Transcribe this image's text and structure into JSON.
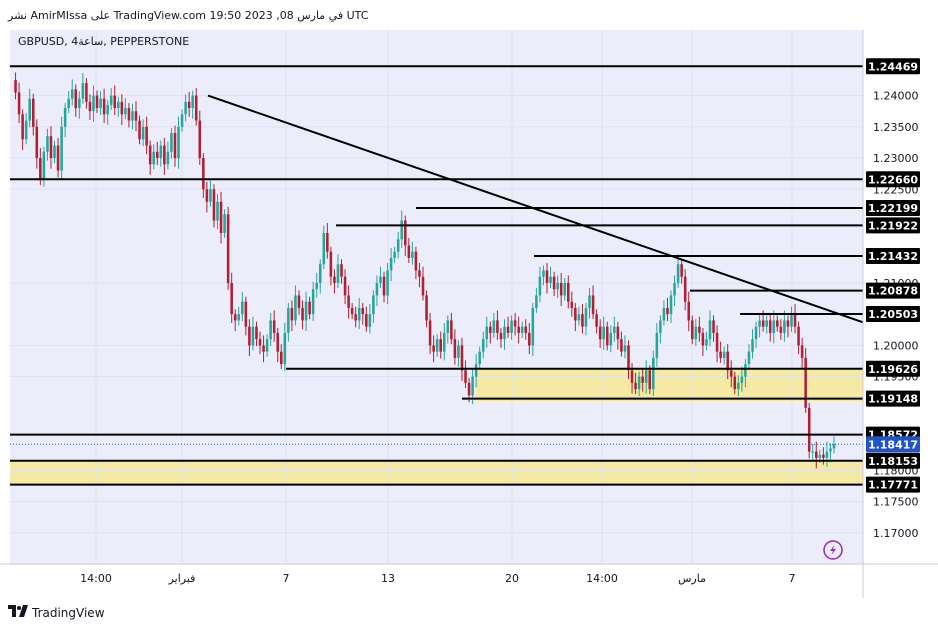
{
  "header": {
    "text": "نشر AmirMIssa على TradingView.com 19:50 2023 ,08 في مارس UTC"
  },
  "symbol_label": "GBPUSD, 4ساعة, PEPPERSTONE",
  "footer": {
    "brand": "TradingView",
    "logo_icon": "tradingview-logo-icon"
  },
  "colors": {
    "background": "#ebedfb",
    "up": "#26a69a",
    "down": "#b21e32",
    "zone": "#f5eaa3",
    "line": "#000000",
    "last_price_bg": "#2154c7"
  },
  "chart_data": {
    "type": "candlestick",
    "ylim": [
      1.165,
      1.2505
    ],
    "y_ticks": [
      "1.24000",
      "1.23500",
      "1.23000",
      "1.22500",
      "1.21000",
      "1.20000",
      "1.19500",
      "1.18000",
      "1.17500",
      "1.17000"
    ],
    "x_ticks": [
      "14:00",
      "فبراير",
      "7",
      "13",
      "20",
      "14:00",
      "مارس",
      "7"
    ],
    "levels": [
      {
        "label": "1.24469",
        "value": 1.24469
      },
      {
        "label": "1.22660",
        "value": 1.2266
      },
      {
        "label": "1.22199",
        "value": 1.22199
      },
      {
        "label": "1.21922",
        "value": 1.21922
      },
      {
        "label": "1.21432",
        "value": 1.21432
      },
      {
        "label": "1.20878",
        "value": 1.20878
      },
      {
        "label": "1.20503",
        "value": 1.20503
      },
      {
        "label": "1.19626",
        "value": 1.19626
      },
      {
        "label": "1.19148",
        "value": 1.19148
      },
      {
        "label": "1.18572",
        "value": 1.18572
      },
      {
        "label": "1.18153",
        "value": 1.18153
      },
      {
        "label": "1.17771",
        "value": 1.17771
      }
    ],
    "last_price": {
      "label": "1.18417",
      "value": 1.18417
    },
    "zones": [
      {
        "from": 1.1911,
        "to": 1.19626
      },
      {
        "from": 1.17771,
        "to": 1.18153
      }
    ],
    "trendline": {
      "from": 1.24,
      "to": 1.2037
    },
    "closes": [
      1.2425,
      1.2405,
      1.237,
      1.233,
      1.236,
      1.2395,
      1.235,
      1.23,
      1.2265,
      1.231,
      1.2335,
      1.23,
      1.232,
      1.228,
      1.235,
      1.238,
      1.2395,
      1.241,
      1.238,
      1.2395,
      1.242,
      1.239,
      1.2375,
      1.24,
      1.238,
      1.2395,
      1.237,
      1.2385,
      1.24,
      1.238,
      1.239,
      1.237,
      1.238,
      1.236,
      1.2375,
      1.236,
      1.233,
      1.235,
      1.232,
      1.229,
      1.231,
      1.23,
      1.232,
      1.229,
      1.231,
      1.234,
      1.23,
      1.235,
      1.237,
      1.239,
      1.238,
      1.24,
      1.236,
      1.23,
      1.225,
      1.223,
      1.225,
      1.22,
      1.223,
      1.218,
      1.221,
      1.21,
      1.205,
      1.204,
      1.205,
      1.207,
      1.203,
      1.2,
      1.203,
      1.201,
      1.2,
      1.199,
      1.201,
      1.204,
      1.202,
      1.199,
      1.197,
      1.202,
      1.206,
      1.204,
      1.208,
      1.206,
      1.204,
      1.207,
      1.205,
      1.209,
      1.21,
      1.213,
      1.218,
      1.215,
      1.211,
      1.21,
      1.213,
      1.211,
      1.208,
      1.206,
      1.205,
      1.204,
      1.206,
      1.205,
      1.203,
      1.205,
      1.208,
      1.21,
      1.211,
      1.208,
      1.212,
      1.214,
      1.215,
      1.217,
      1.22,
      1.216,
      1.214,
      1.215,
      1.212,
      1.211,
      1.208,
      1.204,
      1.2,
      1.199,
      1.201,
      1.199,
      1.202,
      1.204,
      1.201,
      1.198,
      1.2,
      1.196,
      1.194,
      1.192,
      1.195,
      1.197,
      1.199,
      1.201,
      1.203,
      1.202,
      1.204,
      1.202,
      1.201,
      1.203,
      1.202,
      1.204,
      1.203,
      1.202,
      1.203,
      1.202,
      1.2,
      1.206,
      1.208,
      1.211,
      1.212,
      1.21,
      1.211,
      1.209,
      1.21,
      1.208,
      1.21,
      1.207,
      1.206,
      1.204,
      1.205,
      1.203,
      1.206,
      1.208,
      1.205,
      1.203,
      1.201,
      1.203,
      1.2,
      1.202,
      1.203,
      1.201,
      1.199,
      1.2,
      1.196,
      1.194,
      1.193,
      1.195,
      1.194,
      1.196,
      1.193,
      1.198,
      1.202,
      1.204,
      1.206,
      1.205,
      1.208,
      1.21,
      1.213,
      1.211,
      1.207,
      1.204,
      1.201,
      1.203,
      1.202,
      1.2,
      1.201,
      1.204,
      1.202,
      1.199,
      1.198,
      1.199,
      1.196,
      1.195,
      1.193,
      1.194,
      1.195,
      1.197,
      1.199,
      1.201,
      1.203,
      1.204,
      1.203,
      1.204,
      1.202,
      1.204,
      1.203,
      1.202,
      1.204,
      1.203,
      1.205,
      1.203,
      1.2,
      1.198,
      1.19,
      1.183,
      1.183,
      1.182,
      1.1825,
      1.182,
      1.183,
      1.1835,
      1.1842
    ]
  }
}
